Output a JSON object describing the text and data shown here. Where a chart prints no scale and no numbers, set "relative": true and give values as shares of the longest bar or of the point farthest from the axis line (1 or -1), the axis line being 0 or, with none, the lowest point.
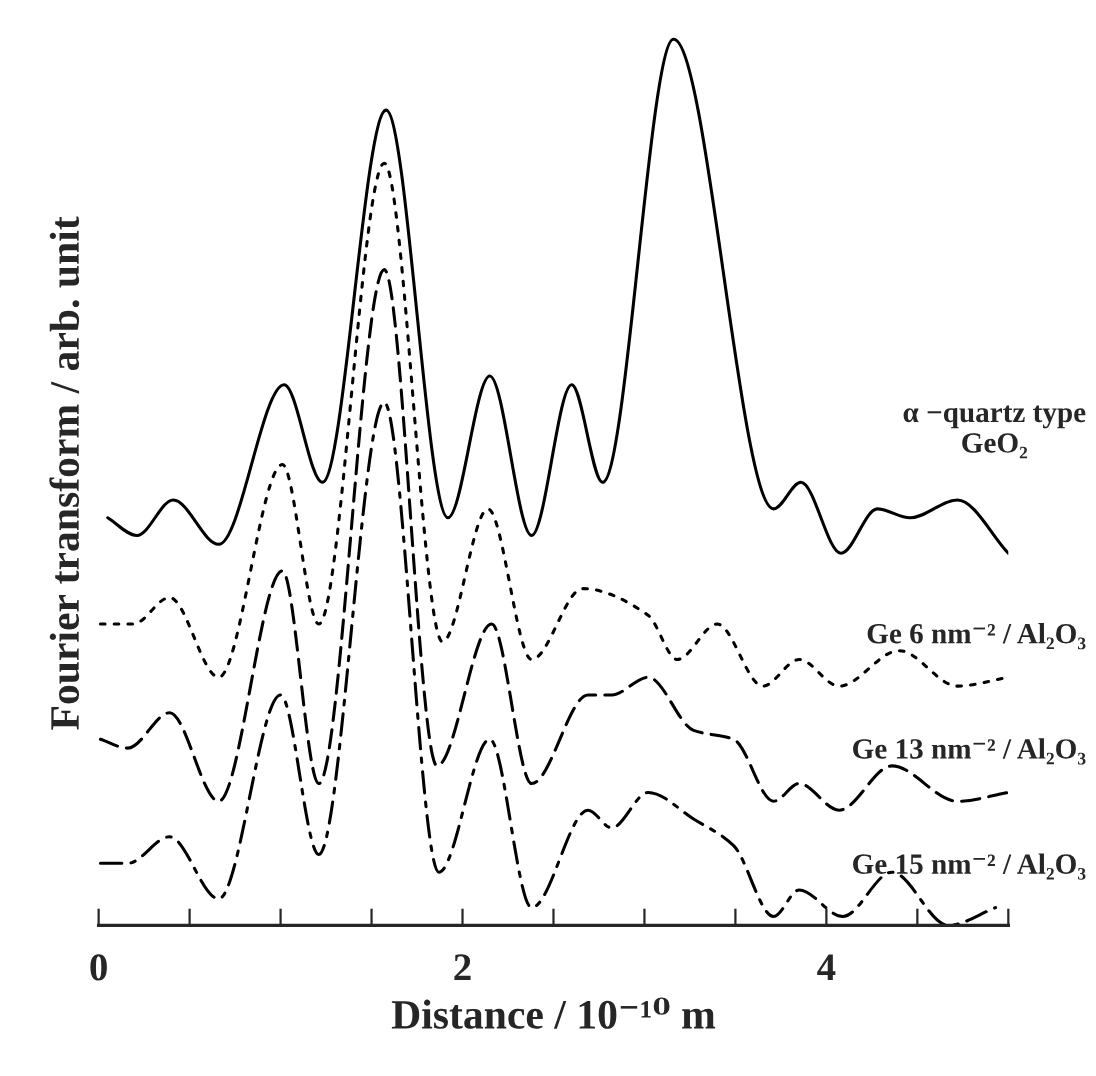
{
  "chart_data": {
    "type": "line",
    "relative": true,
    "xlabel": "Distance / 10⁻¹⁰ m",
    "ylabel": "Fourier transform / arb. unit",
    "xlim": [
      0,
      5
    ],
    "xticks": [
      0,
      {
        "value": 0.5,
        "label": null
      },
      {
        "value": 1,
        "label": null
      },
      {
        "value": 1.5,
        "label": null
      },
      2,
      {
        "value": 2.5,
        "label": null
      },
      {
        "value": 3,
        "label": null
      },
      {
        "value": 3.5,
        "label": null
      },
      4,
      {
        "value": 4.5,
        "label": null
      },
      {
        "value": 5,
        "label": null
      }
    ],
    "grid": false,
    "legend": false,
    "marker": "none",
    "series": [
      {
        "name": "α −quartz type\nGeO₂",
        "color": "#000000",
        "line_style": "solid",
        "x": [
          0.05,
          0.21,
          0.41,
          0.66,
          1.02,
          1.23,
          1.58,
          1.92,
          2.15,
          2.38,
          2.6,
          2.77,
          3.16,
          3.71,
          3.86,
          4.08,
          4.28,
          4.46,
          4.72,
          5.0
        ],
        "values": [
          0.46,
          0.44,
          0.48,
          0.43,
          0.61,
          0.5,
          0.92,
          0.46,
          0.62,
          0.44,
          0.61,
          0.5,
          1.0,
          0.47,
          0.5,
          0.42,
          0.47,
          0.46,
          0.48,
          0.42
        ]
      },
      {
        "name": "Ge 6 nm⁻² / Al₂O₃",
        "color": "#000000",
        "line_style": "dotted",
        "x": [
          0.01,
          0.19,
          0.39,
          0.66,
          1.01,
          1.21,
          1.57,
          1.89,
          2.14,
          2.38,
          2.66,
          3.02,
          3.18,
          3.4,
          3.65,
          3.85,
          4.07,
          4.4,
          4.72,
          5.0
        ],
        "values": [
          0.34,
          0.34,
          0.37,
          0.28,
          0.52,
          0.34,
          0.86,
          0.32,
          0.47,
          0.3,
          0.38,
          0.35,
          0.3,
          0.34,
          0.27,
          0.3,
          0.27,
          0.31,
          0.27,
          0.28
        ]
      },
      {
        "name": "Ge 13 nm⁻² / Al₂O₃",
        "color": "#000000",
        "line_style": "dashed",
        "x": [
          0.01,
          0.16,
          0.39,
          0.66,
          1.01,
          1.21,
          1.57,
          1.86,
          2.16,
          2.38,
          2.69,
          2.82,
          3.02,
          3.27,
          3.49,
          3.71,
          3.85,
          4.07,
          4.36,
          4.72,
          5.0
        ],
        "values": [
          0.21,
          0.2,
          0.24,
          0.14,
          0.4,
          0.16,
          0.74,
          0.18,
          0.34,
          0.16,
          0.26,
          0.26,
          0.28,
          0.22,
          0.21,
          0.14,
          0.16,
          0.13,
          0.18,
          0.14,
          0.15
        ]
      },
      {
        "name": "Ge 15 nm⁻² / Al₂O₃",
        "color": "#000000",
        "line_style": "dashdot",
        "x": [
          0.01,
          0.16,
          0.39,
          0.66,
          1.0,
          1.21,
          1.57,
          1.87,
          2.15,
          2.38,
          2.69,
          2.82,
          3.02,
          3.27,
          3.49,
          3.71,
          3.85,
          4.09,
          4.36,
          4.67,
          4.93
        ],
        "values": [
          0.07,
          0.07,
          0.1,
          0.03,
          0.26,
          0.08,
          0.59,
          0.06,
          0.21,
          0.02,
          0.13,
          0.11,
          0.15,
          0.12,
          0.09,
          0.01,
          0.04,
          0.01,
          0.06,
          0.0,
          0.02
        ]
      }
    ]
  }
}
